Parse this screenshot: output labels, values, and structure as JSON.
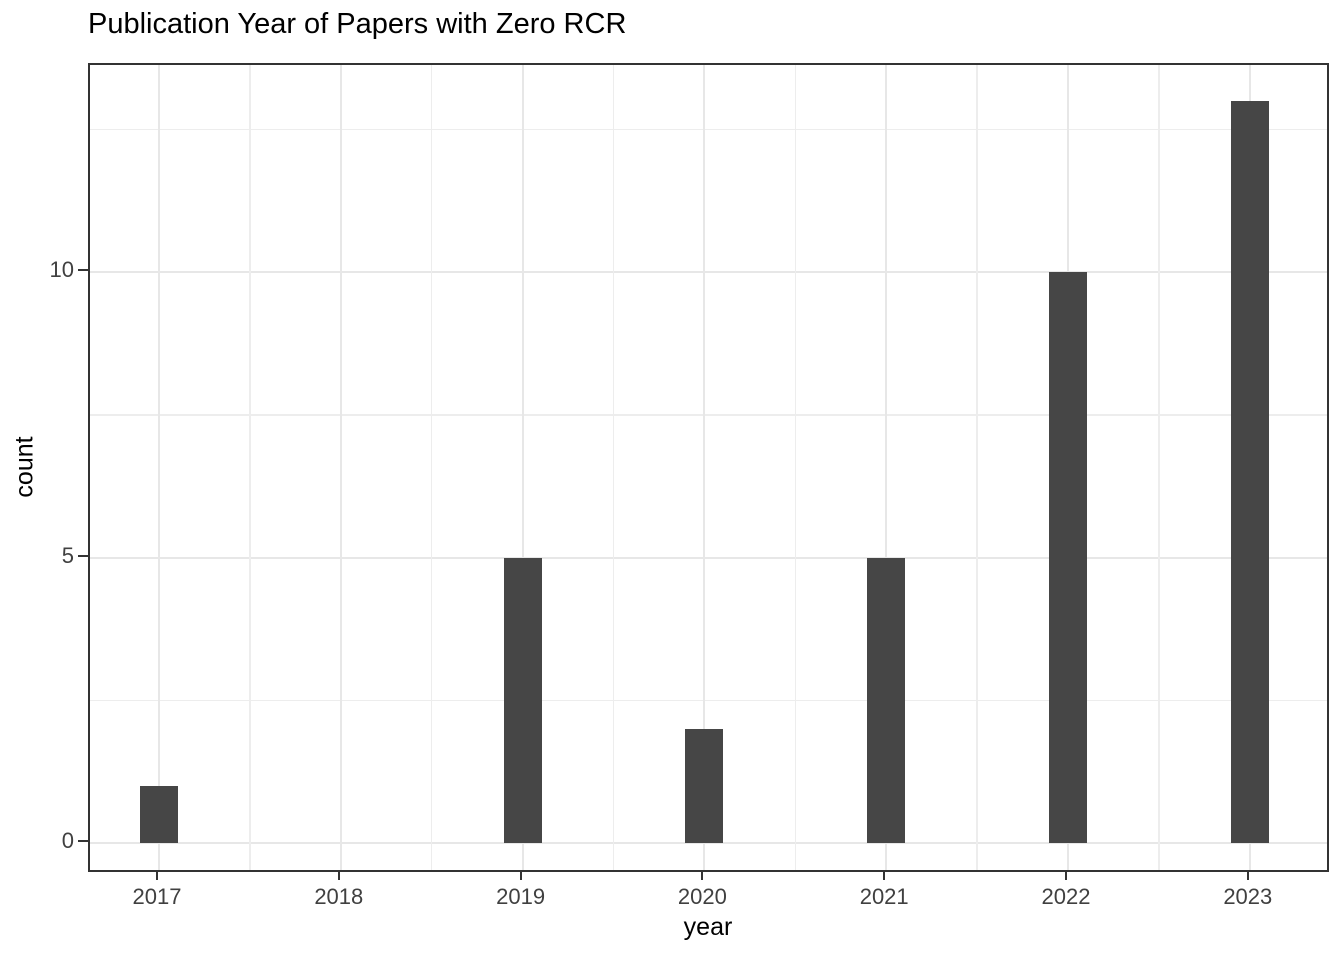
{
  "chart_data": {
    "type": "bar",
    "title": "Publication Year of Papers with Zero RCR",
    "xlabel": "year",
    "ylabel": "count",
    "categories": [
      "2017",
      "2018",
      "2019",
      "2020",
      "2021",
      "2022",
      "2023"
    ],
    "values": [
      1,
      0,
      5,
      2,
      5,
      10,
      13
    ],
    "yticks": [
      0,
      5,
      10
    ],
    "yminor_gridlines": [
      2.5,
      7.5,
      12.5
    ],
    "ylim": [
      -0.65,
      13.65
    ],
    "grid": "major and minor gridlines, light gray on white panel",
    "legend": "none",
    "colors": {
      "bar_fill": "#464646",
      "panel_border": "#333333",
      "gridline_major": "#e7e7e7",
      "gridline_minor": "#ededed",
      "axis_text": "#404040",
      "title_text": "#000000",
      "background": "#ffffff"
    }
  }
}
